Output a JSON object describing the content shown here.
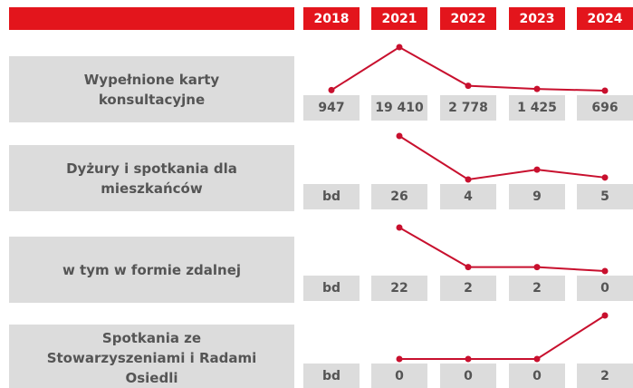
{
  "years": [
    "2018",
    "2021",
    "2022",
    "2023",
    "2024"
  ],
  "rows": [
    {
      "label": "Wypełnione karty konsultacyjne",
      "values": [
        947,
        19410,
        2778,
        1425,
        696
      ],
      "value_labels": [
        "947",
        "19 410",
        "2 778",
        "1 425",
        "696"
      ]
    },
    {
      "label": "Dyżury i spotkania dla mieszkańców",
      "values": [
        null,
        26,
        4,
        9,
        5
      ],
      "value_labels": [
        "bd",
        "26",
        "4",
        "9",
        "5"
      ]
    },
    {
      "label": "w tym w formie zdalnej",
      "values": [
        null,
        22,
        2,
        2,
        0
      ],
      "value_labels": [
        "bd",
        "22",
        "2",
        "2",
        "0"
      ]
    },
    {
      "label": "Spotkania ze Stowarzyszeniami i Radami Osiedli",
      "values": [
        null,
        0,
        0,
        0,
        2
      ],
      "value_labels": [
        "bd",
        "0",
        "0",
        "0",
        "2"
      ]
    }
  ]
}
